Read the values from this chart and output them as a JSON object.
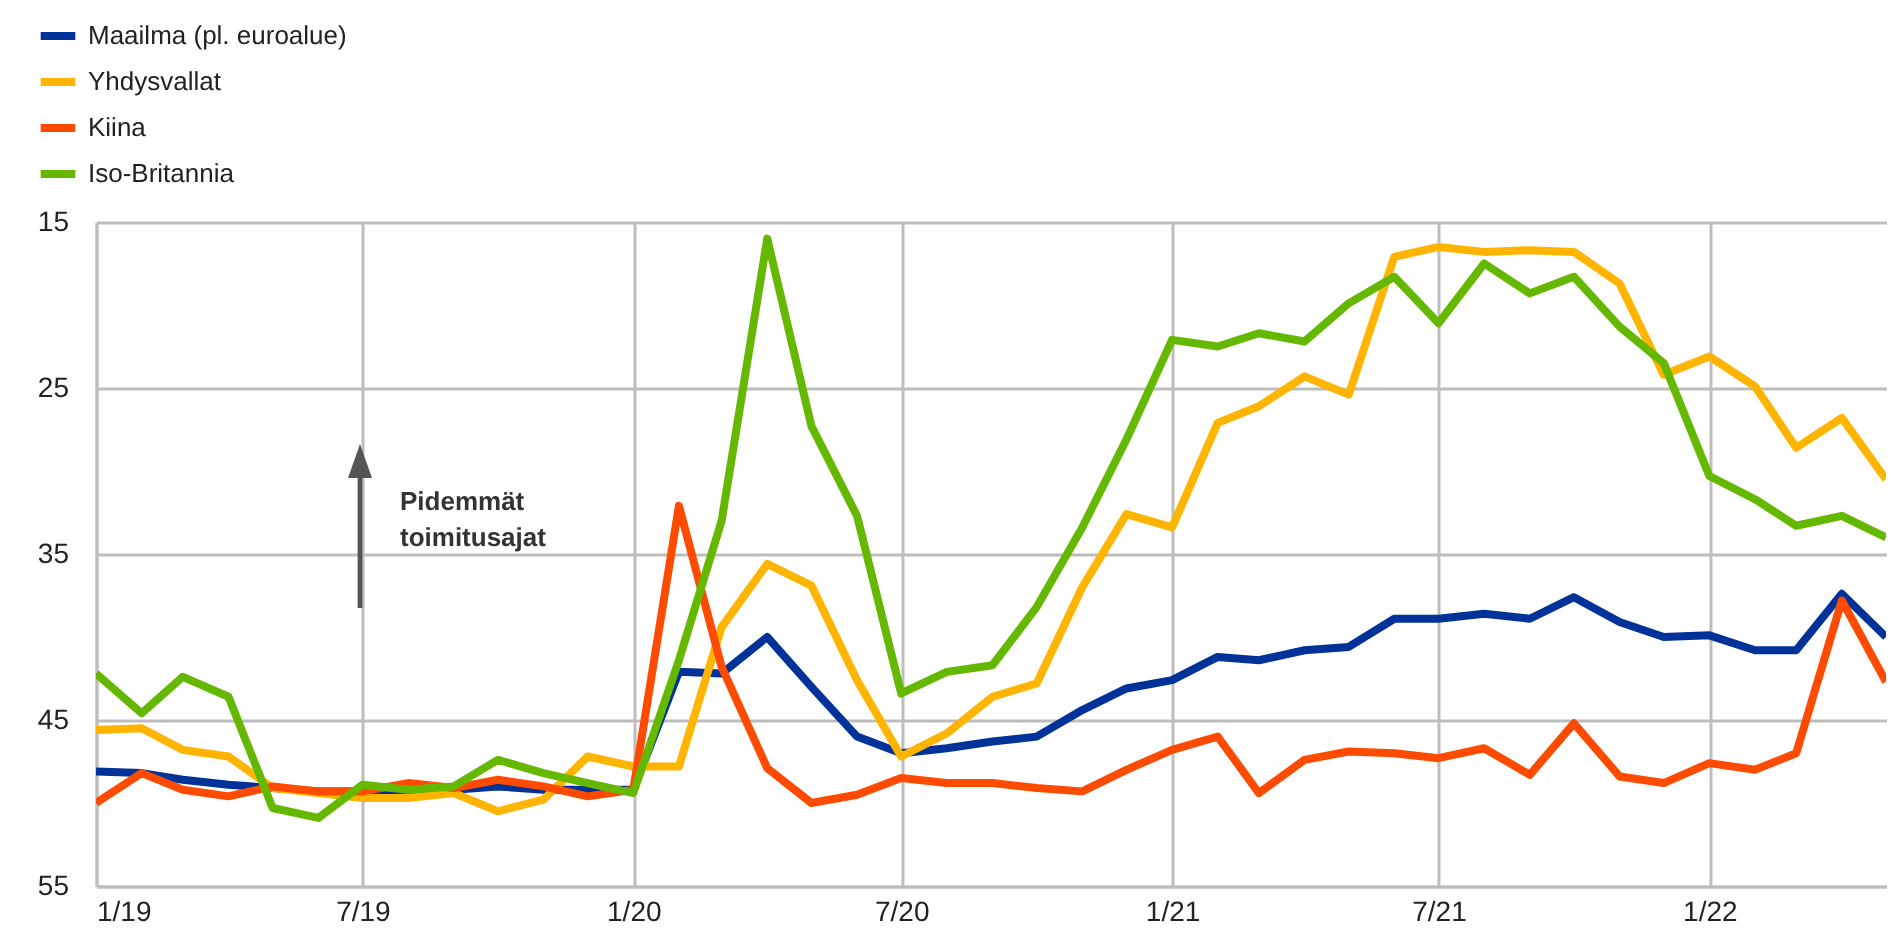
{
  "chart_data": {
    "type": "line",
    "x": [
      "2019-01",
      "2019-02",
      "2019-03",
      "2019-04",
      "2019-05",
      "2019-06",
      "2019-07",
      "2019-08",
      "2019-09",
      "2019-10",
      "2019-11",
      "2019-12",
      "2020-01",
      "2020-02",
      "2020-03",
      "2020-04",
      "2020-05",
      "2020-06",
      "2020-07",
      "2020-08",
      "2020-09",
      "2020-10",
      "2020-11",
      "2020-12",
      "2021-01",
      "2021-02",
      "2021-03",
      "2021-04",
      "2021-05",
      "2021-06",
      "2021-07",
      "2021-08",
      "2021-09",
      "2021-10",
      "2021-11",
      "2021-12",
      "2022-01",
      "2022-02",
      "2022-03",
      "2022-04",
      "2022-05"
    ],
    "series": [
      {
        "name": "Maailma (pl. euroalue)",
        "color": "#003299",
        "values": [
          48.1,
          48.2,
          48.6,
          48.9,
          49.1,
          49.3,
          49.3,
          49.3,
          49.2,
          49.0,
          49.2,
          49.2,
          49.2,
          42.1,
          42.2,
          40.0,
          43.0,
          46.0,
          47.0,
          46.7,
          46.3,
          46.0,
          44.4,
          43.1,
          42.6,
          41.2,
          41.4,
          40.8,
          40.6,
          38.9,
          38.9,
          38.6,
          38.9,
          37.6,
          39.1,
          40.0,
          39.9,
          40.8,
          40.8,
          37.4,
          40.0
        ]
      },
      {
        "name": "Yhdysvallat",
        "color": "#ffb400",
        "values": [
          45.6,
          45.5,
          46.8,
          47.2,
          49.1,
          49.4,
          49.7,
          49.7,
          49.4,
          50.5,
          49.8,
          47.2,
          47.8,
          47.8,
          39.4,
          35.6,
          36.9,
          42.6,
          47.2,
          45.8,
          43.6,
          42.8,
          37.0,
          32.6,
          33.4,
          27.1,
          26.1,
          24.3,
          25.4,
          17.1,
          16.5,
          16.8,
          16.7,
          16.8,
          18.7,
          24.2,
          23.1,
          24.9,
          28.6,
          26.8,
          30.5
        ]
      },
      {
        "name": "Kiina",
        "color": "#ff4b00",
        "values": [
          50.0,
          48.2,
          49.2,
          49.6,
          49.0,
          49.3,
          49.3,
          48.8,
          49.1,
          48.6,
          49.0,
          49.6,
          49.2,
          32.1,
          41.8,
          47.9,
          50.0,
          49.5,
          48.5,
          48.8,
          48.8,
          49.1,
          49.3,
          48.0,
          46.8,
          46.0,
          49.4,
          47.4,
          46.9,
          47.0,
          47.3,
          46.7,
          48.3,
          45.2,
          48.4,
          48.8,
          47.6,
          48.0,
          47.0,
          37.8,
          42.7
        ]
      },
      {
        "name": "Iso-Britannia",
        "color": "#65b800",
        "values": [
          42.2,
          44.6,
          42.4,
          43.6,
          50.3,
          50.9,
          48.9,
          49.2,
          49.0,
          47.4,
          48.2,
          48.8,
          49.4,
          41.4,
          33.0,
          16.0,
          27.3,
          32.7,
          43.4,
          42.1,
          41.7,
          38.2,
          33.4,
          28.1,
          22.1,
          22.5,
          21.7,
          22.2,
          19.9,
          18.3,
          21.1,
          17.5,
          19.3,
          18.3,
          21.3,
          23.5,
          30.3,
          31.7,
          33.3,
          32.7,
          34.0
        ]
      }
    ],
    "xlim": [
      "2019-01",
      "2022-05"
    ],
    "xticks": [
      {
        "value": "2019-01",
        "label": "1/19"
      },
      {
        "value": "2019-07",
        "label": "7/19"
      },
      {
        "value": "2020-01",
        "label": "1/20"
      },
      {
        "value": "2020-07",
        "label": "7/20"
      },
      {
        "value": "2021-01",
        "label": "1/21"
      },
      {
        "value": "2021-07",
        "label": "7/21"
      },
      {
        "value": "2022-01",
        "label": "1/22"
      }
    ],
    "ylim": [
      55,
      15
    ],
    "yticks": [
      15,
      25,
      35,
      45,
      55
    ],
    "grid": true,
    "legend": "top left",
    "marker": "none",
    "line_style": "solid",
    "annotations": [
      "Pidemmät toimitusajat"
    ]
  }
}
